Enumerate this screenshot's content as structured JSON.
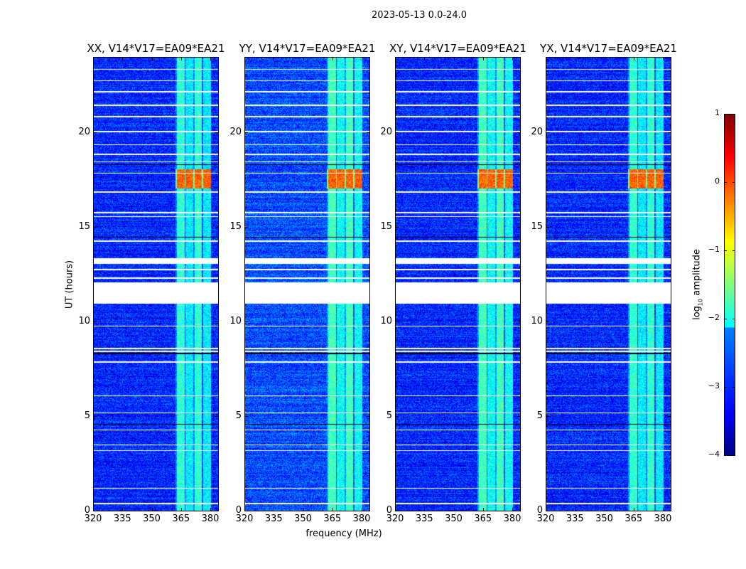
{
  "suptitle": "2023-05-13 0.0-24.0",
  "chart_data": {
    "type": "heatmap",
    "title": "2023-05-13 0.0-24.0",
    "xlabel": "frequency (MHz)",
    "ylabel": "UT (hours)",
    "xlim": [
      320,
      384
    ],
    "ylim": [
      0,
      24
    ],
    "xticks": [
      320,
      335,
      350,
      365,
      380
    ],
    "yticks": [
      0,
      5,
      10,
      15,
      20
    ],
    "panels": [
      {
        "title": "XX, V14*V17=EA09*EA21",
        "band_level": -1.9,
        "background_level": -3.2
      },
      {
        "title": "YY, V14*V17=EA09*EA21",
        "band_level": -1.8,
        "background_level": -3.0
      },
      {
        "title": "XY, V14*V17=EA09*EA21",
        "band_level": -1.8,
        "background_level": -3.2
      },
      {
        "title": "YX, V14*V17=EA09*EA21",
        "band_level": -1.9,
        "background_level": -3.2
      }
    ],
    "rfi_band_mhz": [
      362,
      380
    ],
    "strong_rfi_hours": [
      17.1,
      18.1
    ],
    "strong_rfi_level": -0.1,
    "flagged_blocks_hours": [
      [
        11.0,
        12.1
      ],
      [
        13.1,
        13.4
      ]
    ],
    "flagged_rows_hours": [
      0.4,
      1.2,
      3.2,
      3.5,
      4.3,
      5.2,
      6.1,
      7.9,
      8.45,
      8.6,
      9.8,
      12.35,
      12.8,
      14.3,
      15.6,
      15.8,
      16.9,
      17.9,
      18.5,
      18.9,
      19.4,
      20.1,
      20.9,
      21.5,
      22.2,
      22.8,
      23.4
    ],
    "dark_rows_hours": [
      4.6,
      8.35,
      18.35,
      14.5
    ],
    "colorbar": {
      "label_main": "log",
      "label_sub": "10",
      "label_rest": " amplitude",
      "range": [
        -4,
        1
      ],
      "ticks": [
        "1",
        "0",
        "−1",
        "−2",
        "−3",
        "−4"
      ],
      "tick_values": [
        1,
        0,
        -1,
        -2,
        -3,
        -4
      ],
      "colormap": "jet"
    }
  }
}
